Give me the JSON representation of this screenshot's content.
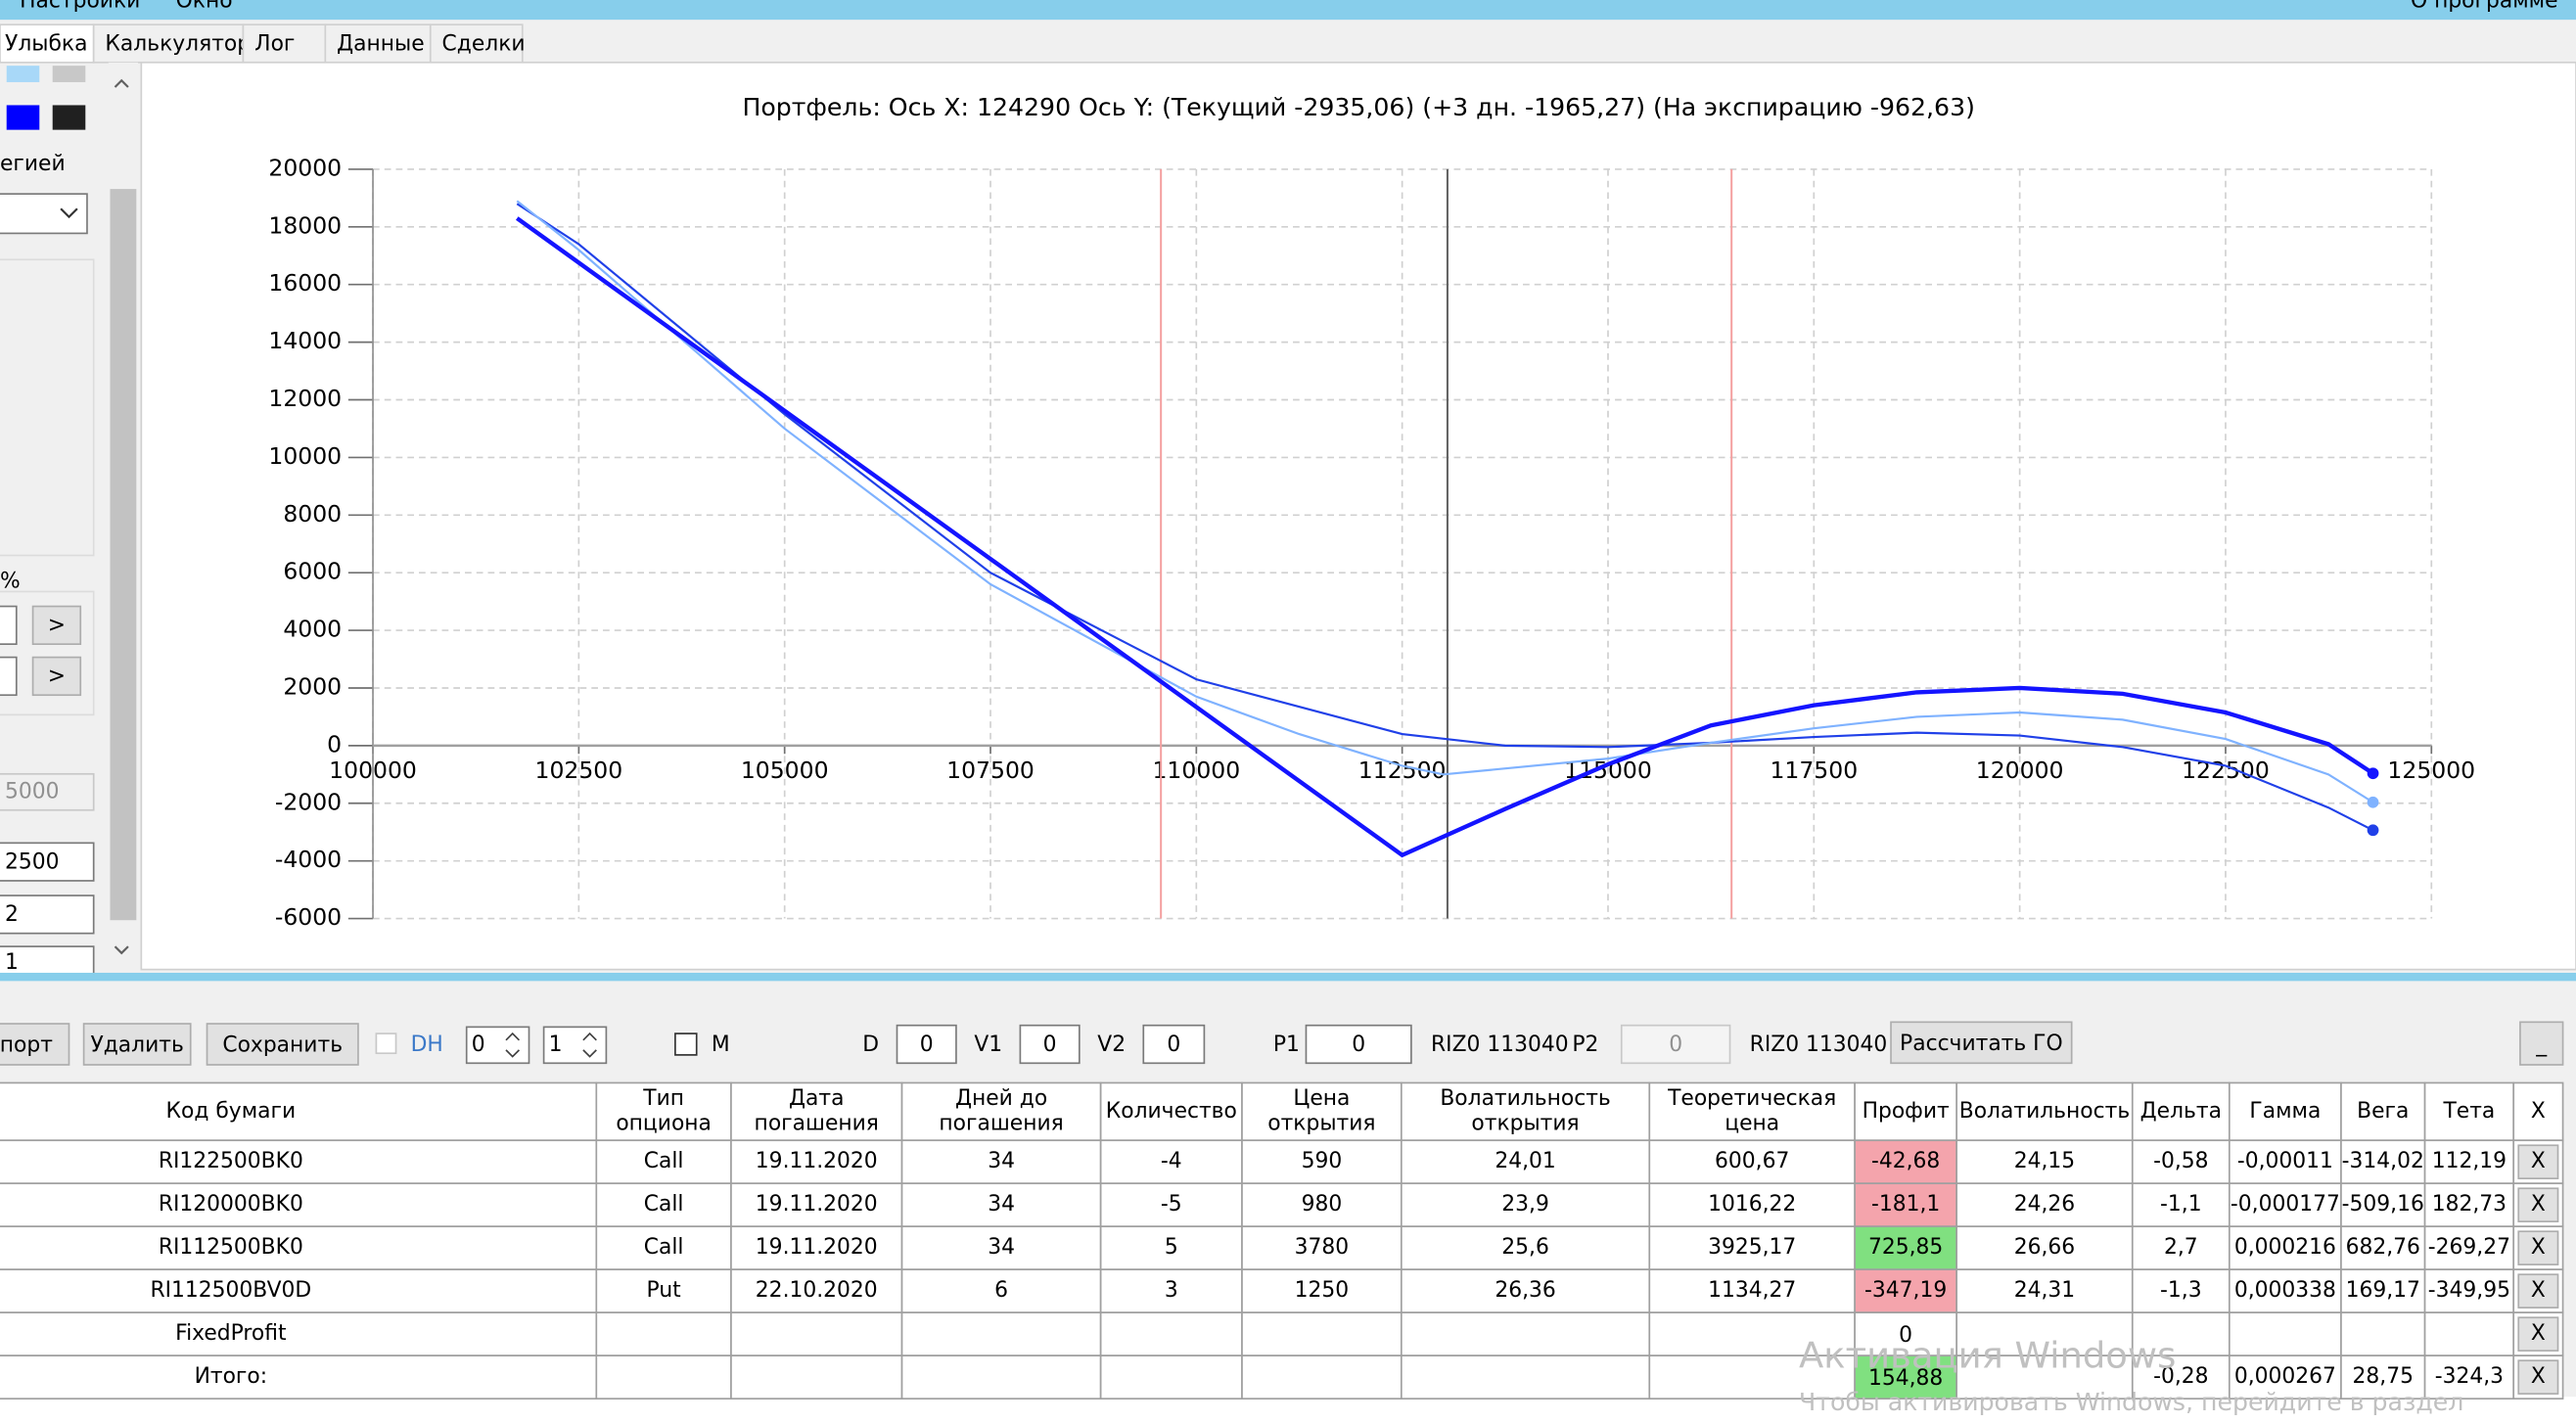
{
  "menu": [
    "Настройки",
    "Окно",
    "О программе"
  ],
  "tabs": [
    "Улыбка",
    "Калькулятор",
    "Лог",
    "Данные",
    "Сделки"
  ],
  "left_panel": {
    "label": "егией",
    "percent": "%",
    "buttons": [
      ">",
      ">"
    ],
    "inputs": [
      "5000",
      "2500",
      "2",
      "1"
    ]
  },
  "chart_data": {
    "type": "line",
    "title": "Портфель: Ось X: 124290 Ось Y:  (Текущий -2935,06)  (+3 дн. -1965,27)  (На экспирацию -962,63)",
    "xlim": [
      100000,
      125000
    ],
    "xticks": [
      100000,
      102500,
      105000,
      107500,
      110000,
      112500,
      115000,
      117500,
      120000,
      122500,
      125000
    ],
    "ylim": [
      -6000,
      20000
    ],
    "yticks": [
      -6000,
      -4000,
      -2000,
      0,
      2000,
      4000,
      6000,
      8000,
      10000,
      12000,
      14000,
      16000,
      18000,
      20000
    ],
    "grid": true,
    "markers": [
      {
        "x": 109570,
        "color": "#f4a0a0"
      },
      {
        "x": 113050,
        "color": "#606060"
      },
      {
        "x": 116500,
        "color": "#f4a0a0"
      }
    ],
    "series": [
      {
        "color": "#2040e8",
        "x": [
          101750,
          102500,
          105000,
          107500,
          110000,
          112500,
          113750,
          115000,
          116250,
          117500,
          118750,
          120000,
          121250,
          122500,
          123750,
          124290
        ],
        "values": [
          18800,
          17400,
          11500,
          6000,
          2300,
          400,
          0,
          -50,
          100,
          300,
          450,
          350,
          -50,
          -700,
          -2150,
          -2935.06
        ]
      },
      {
        "color": "#7fb2ff",
        "x": [
          101750,
          102500,
          105000,
          107500,
          110000,
          111250,
          112500,
          113000,
          115000,
          116250,
          117500,
          118750,
          120000,
          121250,
          122500,
          123750,
          124290
        ],
        "values": [
          18900,
          17200,
          11000,
          5600,
          1700,
          400,
          -700,
          -1000,
          -450,
          100,
          600,
          1000,
          1150,
          900,
          230,
          -1000,
          -1965.27
        ]
      },
      {
        "color": "#1414ff",
        "x": [
          101750,
          112500,
          113750,
          115000,
          116250,
          117500,
          118750,
          120000,
          121250,
          122500,
          123750,
          124290
        ],
        "values": [
          18300,
          -3800,
          -2200,
          -650,
          700,
          1400,
          1850,
          2000,
          1800,
          1150,
          50,
          -962.63
        ]
      }
    ]
  },
  "toolbar": {
    "import": "порт",
    "delete": "Удалить",
    "save": "Сохранить",
    "dh": "DH",
    "spin1": "0",
    "spin2": "1",
    "m": "M",
    "d_label": "D",
    "d": "0",
    "v1_label": "V1",
    "v1": "0",
    "v2_label": "V2",
    "v2": "0",
    "p1_label": "P1",
    "p1": "0",
    "p1_sec": "RIZ0 113040",
    "p2_label": "P2",
    "p2": "0",
    "p2_sec": "RIZ0 113040",
    "calc": "Рассчитать ГО",
    "minimize": "_"
  },
  "table": {
    "header": [
      [
        "Код бумаги"
      ],
      [
        "Тип",
        "опциона"
      ],
      [
        "Дата",
        "погашения"
      ],
      [
        "Дней до",
        "погашения"
      ],
      [
        "Количество"
      ],
      [
        "Цена",
        "открытия"
      ],
      [
        "Волатильность",
        "открытия"
      ],
      [
        "Теоретическая",
        "цена"
      ],
      [
        "Профит"
      ],
      [
        "Волатильность"
      ],
      [
        "Дельта"
      ],
      [
        "Гамма"
      ],
      [
        "Вега"
      ],
      [
        "Тета"
      ],
      [
        "X"
      ]
    ],
    "rows": [
      {
        "cells": [
          "RI122500BK0",
          "Call",
          "19.11.2020",
          "34",
          "-4",
          "590",
          "24,01",
          "600,67",
          "-42,68",
          "24,15",
          "-0,58",
          "-0,00011",
          "-314,02",
          "112,19",
          "X"
        ],
        "profit_color": "#f4a4ac"
      },
      {
        "cells": [
          "RI120000BK0",
          "Call",
          "19.11.2020",
          "34",
          "-5",
          "980",
          "23,9",
          "1016,22",
          "-181,1",
          "24,26",
          "-1,1",
          "-0,000177",
          "-509,16",
          "182,73",
          "X"
        ],
        "profit_color": "#f4a4ac"
      },
      {
        "cells": [
          "RI112500BK0",
          "Call",
          "19.11.2020",
          "34",
          "5",
          "3780",
          "25,6",
          "3925,17",
          "725,85",
          "26,66",
          "2,7",
          "0,000216",
          "682,76",
          "-269,27",
          "X"
        ],
        "profit_color": "#80e080"
      },
      {
        "cells": [
          "RI112500BV0D",
          "Put",
          "22.10.2020",
          "6",
          "3",
          "1250",
          "26,36",
          "1134,27",
          "-347,19",
          "24,31",
          "-1,3",
          "0,000338",
          "169,17",
          "-349,95",
          "X"
        ],
        "profit_color": "#f4a4ac"
      },
      {
        "cells": [
          "FixedProfit",
          null,
          null,
          null,
          null,
          null,
          null,
          null,
          "0",
          null,
          null,
          null,
          null,
          null,
          "X"
        ],
        "profit_color": "#ffffff"
      },
      {
        "cells": [
          "Итого:",
          null,
          null,
          null,
          null,
          null,
          null,
          null,
          "154,88",
          null,
          "-0,28",
          "0,000267",
          "28,75",
          "-324,3",
          "X"
        ],
        "profit_color": "#80e080"
      }
    ]
  },
  "watermark": [
    "Активация Windows",
    "Чтобы активировать Windows, перейдите в раздел"
  ]
}
